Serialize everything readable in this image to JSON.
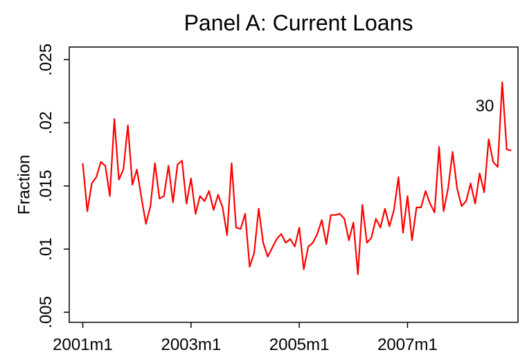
{
  "chart_data": {
    "type": "line",
    "title": "Panel A: Current Loans",
    "ylabel": "Fraction",
    "annotation": "30",
    "x": [
      492,
      493,
      494,
      495,
      496,
      497,
      498,
      499,
      500,
      501,
      502,
      503,
      504,
      505,
      506,
      507,
      508,
      509,
      510,
      511,
      512,
      513,
      514,
      515,
      516,
      517,
      518,
      519,
      520,
      521,
      522,
      523,
      524,
      525,
      526,
      527,
      528,
      529,
      530,
      531,
      532,
      533,
      534,
      535,
      536,
      537,
      538,
      539,
      540,
      541,
      542,
      543,
      544,
      545,
      546,
      547,
      548,
      549,
      550,
      551,
      552,
      553,
      554,
      555,
      556,
      557,
      558,
      559,
      560,
      561,
      562,
      563,
      564,
      565,
      566,
      567,
      568,
      569,
      570,
      571,
      572,
      573,
      574,
      575,
      576,
      577,
      578,
      579,
      580,
      581,
      582,
      583,
      584,
      585,
      586,
      587
    ],
    "series": [
      {
        "color": "#ff0000",
        "values": [
          0.0168,
          0.013,
          0.0152,
          0.0157,
          0.0169,
          0.0166,
          0.0142,
          0.0203,
          0.0155,
          0.0163,
          0.0198,
          0.0151,
          0.0163,
          0.0141,
          0.012,
          0.0134,
          0.0168,
          0.014,
          0.0142,
          0.0166,
          0.0137,
          0.0167,
          0.017,
          0.0136,
          0.0156,
          0.0128,
          0.0142,
          0.0138,
          0.0146,
          0.0131,
          0.0143,
          0.0133,
          0.0111,
          0.0168,
          0.0117,
          0.0116,
          0.0128,
          0.0086,
          0.0097,
          0.0132,
          0.0105,
          0.0094,
          0.0101,
          0.0108,
          0.0112,
          0.0105,
          0.0108,
          0.0102,
          0.0117,
          0.0084,
          0.0102,
          0.0105,
          0.0112,
          0.0123,
          0.0104,
          0.0127,
          0.0127,
          0.0128,
          0.0124,
          0.0107,
          0.0121,
          0.008,
          0.0135,
          0.0105,
          0.0109,
          0.0124,
          0.0117,
          0.0132,
          0.0118,
          0.0131,
          0.0157,
          0.0113,
          0.0142,
          0.0107,
          0.0133,
          0.0133,
          0.0146,
          0.0136,
          0.0129,
          0.0181,
          0.013,
          0.0148,
          0.0177,
          0.0148,
          0.0134,
          0.0138,
          0.0152,
          0.0136,
          0.016,
          0.0145,
          0.0187,
          0.0169,
          0.0165,
          0.0232,
          0.0179,
          0.0178
        ]
      }
    ],
    "xlim": [
      489,
      588.5
    ],
    "xticks": [
      {
        "value": 492,
        "label": "2001m1"
      },
      {
        "value": 516,
        "label": "2003m1"
      },
      {
        "value": 540,
        "label": "2005m1"
      },
      {
        "value": 564,
        "label": "2007m1"
      }
    ],
    "ylim": [
      0.0042,
      0.026
    ],
    "yticks": [
      {
        "value": 0.005,
        "label": ".005"
      },
      {
        "value": 0.01,
        "label": ".01"
      },
      {
        "value": 0.015,
        "label": ".015"
      },
      {
        "value": 0.02,
        "label": ".02"
      },
      {
        "value": 0.025,
        "label": ".025"
      }
    ]
  }
}
